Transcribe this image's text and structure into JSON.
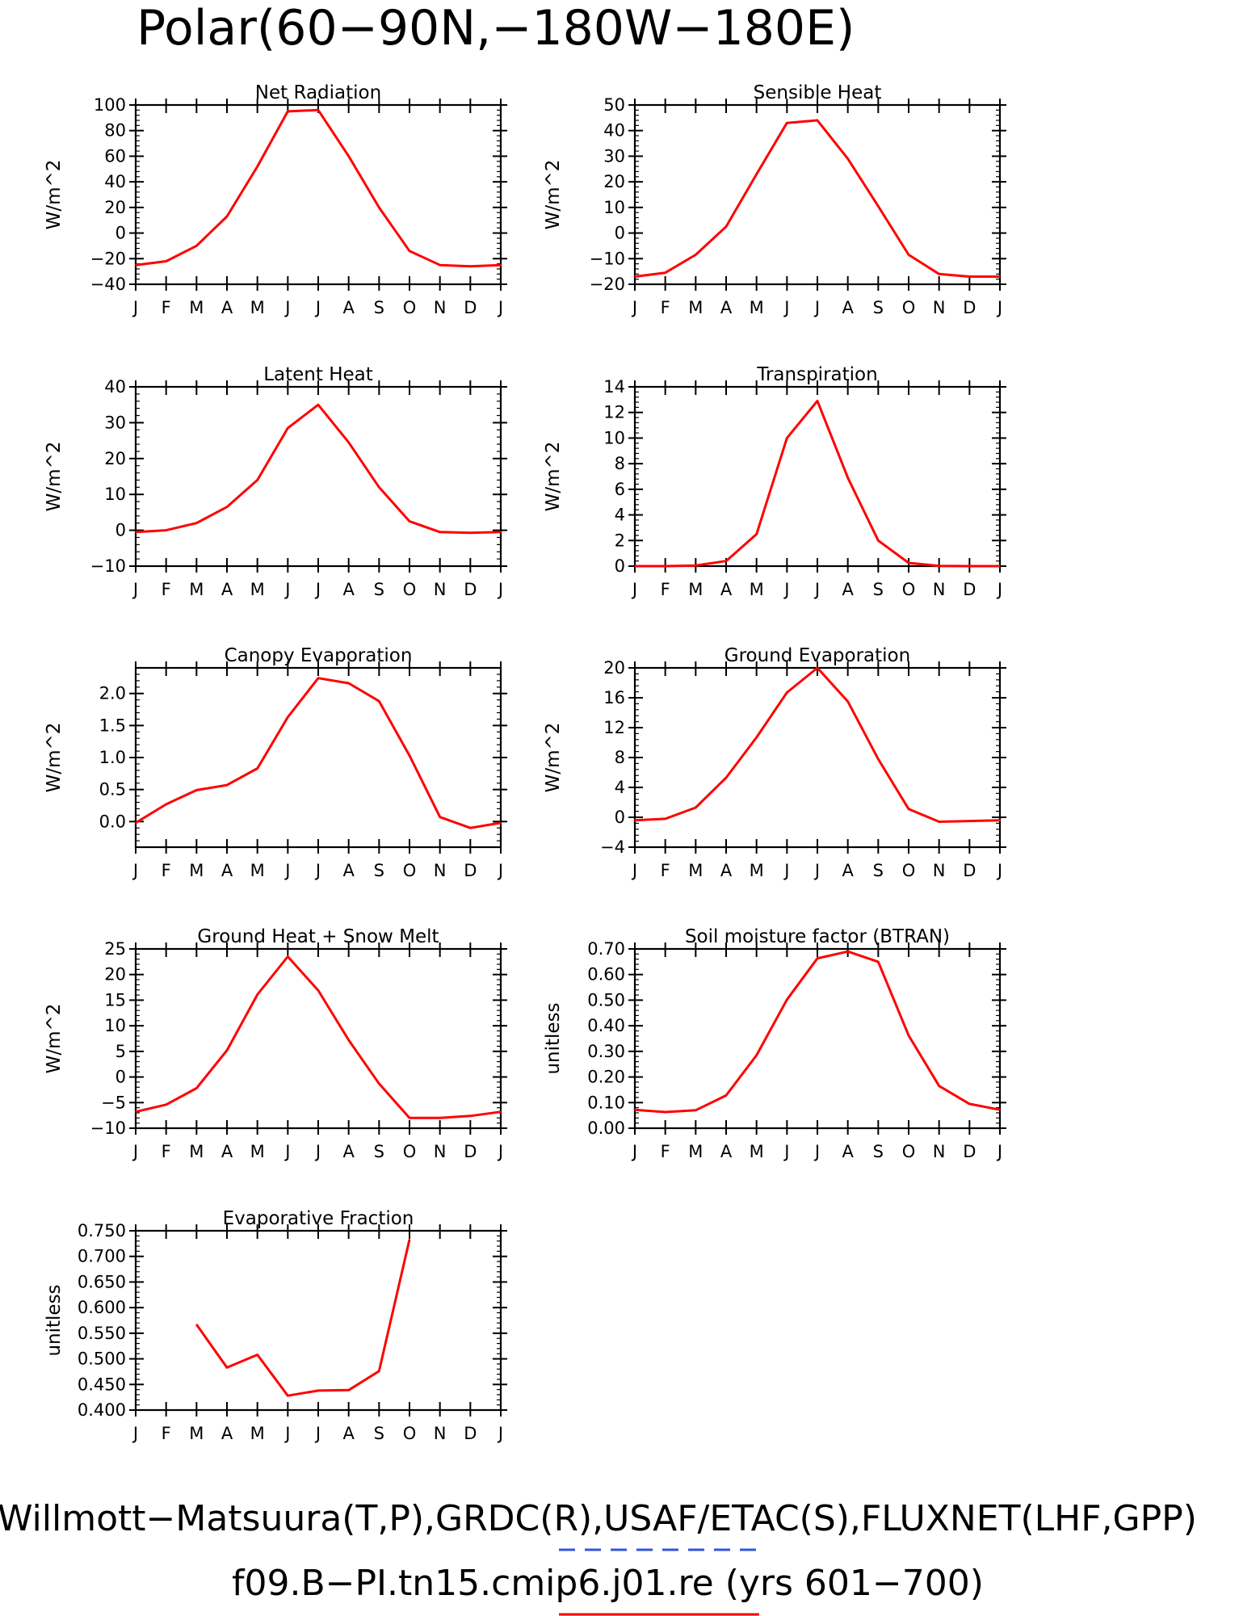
{
  "figure": {
    "title": "Polar(60−90N,−180W−180E)",
    "footer_line1": "Willmott−Matsuura(T,P),GRDC(R),USAF/ETAC(S),FLUXNET(LHF,GPP)",
    "footer_line2": "f09.B−PI.tn15.cmip6.j01.re (yrs 601−700)",
    "colors": {
      "series": "#ff0000",
      "obs_dash": "#3355dd",
      "axes": "#000000"
    }
  },
  "chart_data": [
    {
      "type": "line",
      "title": "Net Radiation",
      "ylabel": "W/m^2",
      "categories": [
        "J",
        "F",
        "M",
        "A",
        "M",
        "J",
        "J",
        "A",
        "S",
        "O",
        "N",
        "D",
        "J"
      ],
      "ylim": [
        -40,
        100
      ],
      "yticks": [
        -40,
        -20,
        0,
        20,
        40,
        60,
        80,
        100
      ],
      "ytick_labels": [
        "−40",
        "−20",
        "0",
        "20",
        "40",
        "60",
        "80",
        "100"
      ],
      "series": [
        {
          "values": [
            -25,
            -22,
            -10,
            13,
            52,
            95,
            96,
            60,
            20,
            -14,
            -25,
            -26,
            -25
          ]
        }
      ]
    },
    {
      "type": "line",
      "title": "Sensible Heat",
      "ylabel": "W/m^2",
      "categories": [
        "J",
        "F",
        "M",
        "A",
        "M",
        "J",
        "J",
        "A",
        "S",
        "O",
        "N",
        "D",
        "J"
      ],
      "ylim": [
        -20,
        50
      ],
      "yticks": [
        -20,
        -10,
        0,
        10,
        20,
        30,
        40,
        50
      ],
      "ytick_labels": [
        "−20",
        "−10",
        "0",
        "10",
        "20",
        "30",
        "40",
        "50"
      ],
      "series": [
        {
          "values": [
            -17,
            -15.5,
            -8.5,
            2.5,
            23,
            43,
            44,
            29,
            10.5,
            -8.5,
            -16,
            -17,
            -17
          ]
        }
      ]
    },
    {
      "type": "line",
      "title": "Latent Heat",
      "ylabel": "W/m^2",
      "categories": [
        "J",
        "F",
        "M",
        "A",
        "M",
        "J",
        "J",
        "A",
        "S",
        "O",
        "N",
        "D",
        "J"
      ],
      "ylim": [
        -10,
        40
      ],
      "yticks": [
        -10,
        0,
        10,
        20,
        30,
        40
      ],
      "ytick_labels": [
        "−10",
        "0",
        "10",
        "20",
        "30",
        "40"
      ],
      "series": [
        {
          "values": [
            -0.5,
            0,
            2,
            6.5,
            14,
            28.5,
            35,
            24.5,
            12,
            2.5,
            -0.5,
            -0.7,
            -0.5
          ]
        }
      ]
    },
    {
      "type": "line",
      "title": "Transpiration",
      "ylabel": "W/m^2",
      "categories": [
        "J",
        "F",
        "M",
        "A",
        "M",
        "J",
        "J",
        "A",
        "S",
        "O",
        "N",
        "D",
        "J"
      ],
      "ylim": [
        0,
        14
      ],
      "yticks": [
        0,
        2,
        4,
        6,
        8,
        10,
        12,
        14
      ],
      "ytick_labels": [
        "0",
        "2",
        "4",
        "6",
        "8",
        "10",
        "12",
        "14"
      ],
      "series": [
        {
          "values": [
            0,
            0,
            0.05,
            0.4,
            2.5,
            10,
            12.9,
            6.9,
            2,
            0.25,
            0.02,
            0,
            0
          ]
        }
      ]
    },
    {
      "type": "line",
      "title": "Canopy Evaporation",
      "ylabel": "W/m^2",
      "categories": [
        "J",
        "F",
        "M",
        "A",
        "M",
        "J",
        "J",
        "A",
        "S",
        "O",
        "N",
        "D",
        "J"
      ],
      "ylim": [
        -0.4,
        2.4
      ],
      "yticks": [
        0,
        0.5,
        1,
        1.5,
        2
      ],
      "ytick_labels": [
        "0.0",
        "0.5",
        "1.0",
        "1.5",
        "2.0"
      ],
      "series": [
        {
          "values": [
            -0.02,
            0.27,
            0.49,
            0.57,
            0.83,
            1.63,
            2.24,
            2.16,
            1.88,
            1.03,
            0.07,
            -0.1,
            -0.02
          ]
        }
      ]
    },
    {
      "type": "line",
      "title": "Ground Evaporation",
      "ylabel": "W/m^2",
      "categories": [
        "J",
        "F",
        "M",
        "A",
        "M",
        "J",
        "J",
        "A",
        "S",
        "O",
        "N",
        "D",
        "J"
      ],
      "ylim": [
        -4,
        20
      ],
      "yticks": [
        -4,
        0,
        4,
        8,
        12,
        16,
        20
      ],
      "ytick_labels": [
        "−4",
        "0",
        "4",
        "8",
        "12",
        "16",
        "20"
      ],
      "series": [
        {
          "values": [
            -0.4,
            -0.2,
            1.3,
            5.3,
            10.7,
            16.7,
            20,
            15.5,
            7.8,
            1.1,
            -0.6,
            -0.5,
            -0.4
          ]
        }
      ]
    },
    {
      "type": "line",
      "title": "Ground Heat + Snow Melt",
      "ylabel": "W/m^2",
      "categories": [
        "J",
        "F",
        "M",
        "A",
        "M",
        "J",
        "J",
        "A",
        "S",
        "O",
        "N",
        "D",
        "J"
      ],
      "ylim": [
        -10,
        25
      ],
      "yticks": [
        -10,
        -5,
        0,
        5,
        10,
        15,
        20,
        25
      ],
      "ytick_labels": [
        "−10",
        "−5",
        "0",
        "5",
        "10",
        "15",
        "20",
        "25"
      ],
      "series": [
        {
          "values": [
            -6.8,
            -5.4,
            -2.2,
            5.2,
            16.1,
            23.5,
            16.9,
            7.2,
            -1.3,
            -8,
            -8,
            -7.6,
            -6.8
          ]
        }
      ]
    },
    {
      "type": "line",
      "title": "Soil moisture factor (BTRAN)",
      "ylabel": "unitless",
      "categories": [
        "J",
        "F",
        "M",
        "A",
        "M",
        "J",
        "J",
        "A",
        "S",
        "O",
        "N",
        "D",
        "J"
      ],
      "ylim": [
        0,
        0.7
      ],
      "yticks": [
        0,
        0.1,
        0.2,
        0.3,
        0.4,
        0.5,
        0.6,
        0.7
      ],
      "ytick_labels": [
        "0.00",
        "0.10",
        "0.20",
        "0.30",
        "0.40",
        "0.50",
        "0.60",
        "0.70"
      ],
      "series": [
        {
          "values": [
            0.072,
            0.063,
            0.07,
            0.128,
            0.285,
            0.502,
            0.663,
            0.69,
            0.65,
            0.362,
            0.165,
            0.095,
            0.072
          ]
        }
      ]
    },
    {
      "type": "line",
      "title": "Evaporative Fraction",
      "ylabel": "unitless",
      "categories": [
        "J",
        "F",
        "M",
        "A",
        "M",
        "J",
        "J",
        "A",
        "S",
        "O",
        "N",
        "D",
        "J"
      ],
      "ylim": [
        0.4,
        0.75
      ],
      "yticks": [
        0.4,
        0.45,
        0.5,
        0.55,
        0.6,
        0.65,
        0.7,
        0.75
      ],
      "ytick_labels": [
        "0.400",
        "0.450",
        "0.500",
        "0.550",
        "0.600",
        "0.650",
        "0.700",
        "0.750"
      ],
      "series": [
        {
          "values": [
            null,
            null,
            0.567,
            0.483,
            0.508,
            0.428,
            0.438,
            0.439,
            0.476,
            0.733,
            null,
            null,
            null
          ]
        }
      ]
    }
  ]
}
